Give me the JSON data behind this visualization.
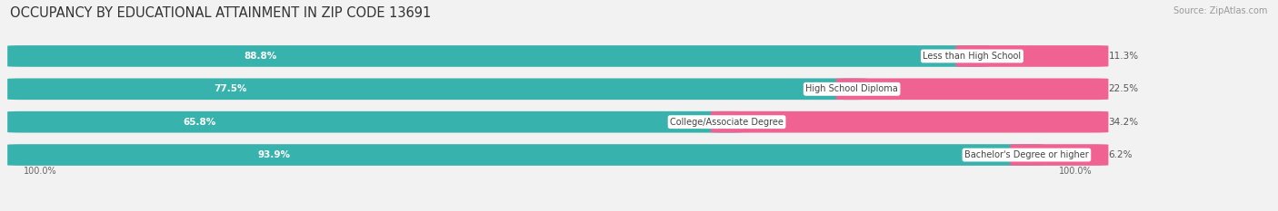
{
  "title": "OCCUPANCY BY EDUCATIONAL ATTAINMENT IN ZIP CODE 13691",
  "source": "Source: ZipAtlas.com",
  "categories": [
    "Less than High School",
    "High School Diploma",
    "College/Associate Degree",
    "Bachelor's Degree or higher"
  ],
  "owner_pct": [
    88.8,
    77.5,
    65.8,
    93.9
  ],
  "renter_pct": [
    11.3,
    22.5,
    34.2,
    6.2
  ],
  "owner_color": "#38b2ac",
  "renter_color": "#f06292",
  "bg_color": "#f2f2f2",
  "bar_bg_color": "#e2e2e2",
  "row_bg_color": "#e8e8e8",
  "title_fontsize": 10.5,
  "source_fontsize": 7,
  "label_fontsize": 7.5,
  "cat_fontsize": 7,
  "legend_fontsize": 7.5,
  "axis_label_fontsize": 7,
  "bar_height": 0.62
}
